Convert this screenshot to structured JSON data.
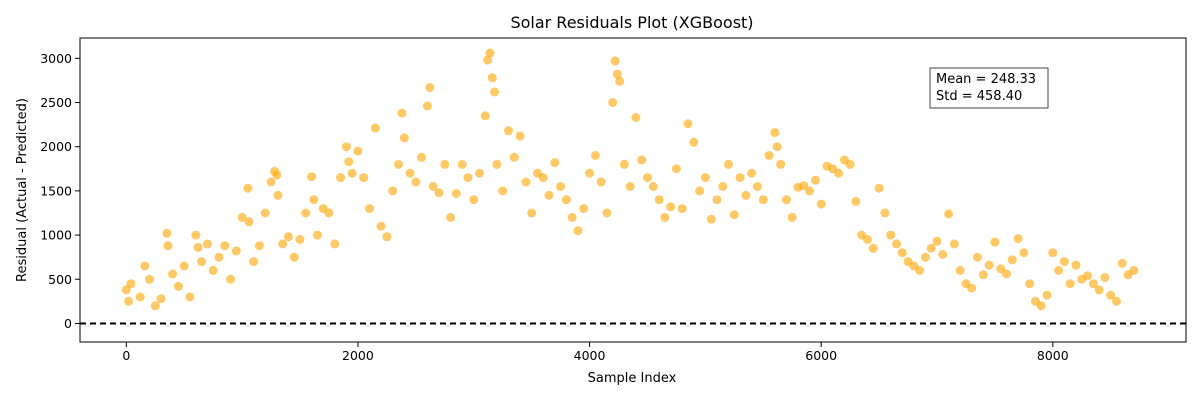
{
  "chart_data": {
    "type": "scatter",
    "title": "Solar Residuals Plot (XGBoost)",
    "xlabel": "Sample Index",
    "ylabel": "Residual (Actual - Predicted)",
    "xlim": [
      -400,
      9150
    ],
    "ylim": [
      -210,
      3230
    ],
    "x_ticks": [
      0,
      2000,
      4000,
      6000,
      8000
    ],
    "y_ticks": [
      0,
      500,
      1000,
      1500,
      2000,
      2500,
      3000
    ],
    "x_tick_labels": [
      "0",
      "2000",
      "4000",
      "6000",
      "8000"
    ],
    "y_tick_labels": [
      "0",
      "500",
      "1000",
      "1500",
      "2000",
      "2500",
      "3000"
    ],
    "reference_line": {
      "y": 0,
      "style": "dashed",
      "color": "#000000"
    },
    "annotation": {
      "lines": [
        "Mean = 248.33",
        "Std = 458.40"
      ],
      "position": "upper-right"
    },
    "marker_color": "#FFA500",
    "marker_alpha": 0.6,
    "grid": false,
    "series": [
      {
        "x": [
          0,
          20,
          40,
          120,
          160,
          200,
          250,
          300,
          350,
          360,
          400,
          450,
          500,
          550,
          600,
          620,
          650,
          700,
          750,
          800,
          850,
          900,
          950,
          1000,
          1050,
          1060,
          1100,
          1150,
          1200,
          1250,
          1280,
          1300,
          1310,
          1350,
          1400,
          1450,
          1500,
          1550,
          1600,
          1620,
          1650,
          1700,
          1750,
          1800,
          1850,
          1900,
          1920,
          1950,
          2000,
          2050,
          2100,
          2150,
          2200,
          2250,
          2300,
          2350,
          2380,
          2400,
          2450,
          2500,
          2550,
          2600,
          2620,
          2650,
          2700,
          2750,
          2800,
          2850,
          2900,
          2950,
          3000,
          3050,
          3100,
          3120,
          3140,
          3160,
          3180,
          3200,
          3250,
          3300,
          3350,
          3400,
          3450,
          3500,
          3550,
          3600,
          3650,
          3700,
          3750,
          3800,
          3850,
          3900,
          3950,
          4000,
          4050,
          4100,
          4150,
          4200,
          4220,
          4240,
          4260,
          4300,
          4350,
          4400,
          4450,
          4500,
          4550,
          4600,
          4650,
          4700,
          4750,
          4800,
          4850,
          4900,
          4950,
          5000,
          5050,
          5100,
          5150,
          5200,
          5250,
          5300,
          5350,
          5400,
          5450,
          5500,
          5550,
          5600,
          5620,
          5650,
          5700,
          5750,
          5800,
          5850,
          5900,
          5950,
          6000,
          6050,
          6100,
          6150,
          6200,
          6250,
          6300,
          6350,
          6400,
          6450,
          6500,
          6550,
          6600,
          6650,
          6700,
          6750,
          6800,
          6850,
          6900,
          6950,
          7000,
          7050,
          7100,
          7150,
          7200,
          7250,
          7300,
          7350,
          7400,
          7450,
          7500,
          7550,
          7600,
          7650,
          7700,
          7750,
          7800,
          7850,
          7900,
          7950,
          8000,
          8050,
          8100,
          8150,
          8200,
          8250,
          8300,
          8350,
          8400,
          8450,
          8500,
          8550,
          8600,
          8650,
          8700
        ],
        "y": [
          380,
          250,
          450,
          300,
          650,
          500,
          200,
          280,
          1020,
          880,
          560,
          420,
          650,
          300,
          1000,
          860,
          700,
          900,
          600,
          750,
          880,
          500,
          820,
          1200,
          1530,
          1150,
          700,
          880,
          1250,
          1600,
          1720,
          1680,
          1450,
          900,
          980,
          750,
          950,
          1250,
          1660,
          1400,
          1000,
          1300,
          1250,
          900,
          1650,
          2000,
          1830,
          1700,
          1950,
          1650,
          1300,
          2210,
          1100,
          980,
          1500,
          1800,
          2380,
          2100,
          1700,
          1600,
          1880,
          2460,
          2670,
          1550,
          1480,
          1800,
          1200,
          1470,
          1800,
          1650,
          1400,
          1700,
          2350,
          2980,
          3060,
          2780,
          2620,
          1800,
          1500,
          2180,
          1880,
          2120,
          1600,
          1250,
          1700,
          1650,
          1450,
          1820,
          1550,
          1400,
          1200,
          1050,
          1300,
          1700,
          1900,
          1600,
          1250,
          2500,
          2970,
          2820,
          2740,
          1800,
          1550,
          2330,
          1850,
          1650,
          1550,
          1400,
          1200,
          1320,
          1750,
          1300,
          2260,
          2050,
          1500,
          1650,
          1180,
          1400,
          1550,
          1800,
          1230,
          1650,
          1450,
          1700,
          1550,
          1400,
          1900,
          2160,
          2000,
          1800,
          1400,
          1200,
          1540,
          1560,
          1500,
          1620,
          1350,
          1780,
          1750,
          1700,
          1850,
          1800,
          1380,
          1000,
          950,
          850,
          1530,
          1250,
          1000,
          900,
          800,
          700,
          650,
          600,
          750,
          850,
          930,
          780,
          1240,
          900,
          600,
          450,
          400,
          750,
          550,
          660,
          920,
          620,
          560,
          720,
          960,
          800,
          450,
          250,
          200,
          320,
          800,
          600,
          700,
          450,
          660,
          500,
          540,
          450,
          380,
          520,
          320,
          250,
          680,
          550,
          600
        ]
      }
    ]
  }
}
